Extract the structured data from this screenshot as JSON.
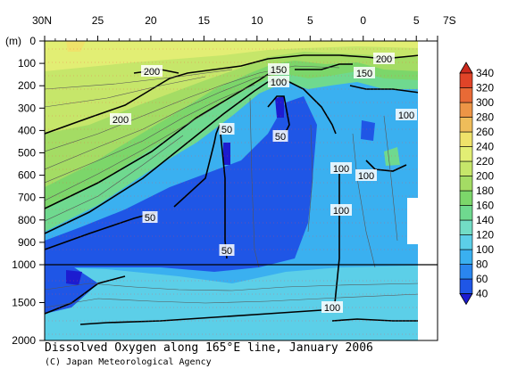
{
  "chart_data": {
    "type": "contour",
    "title": "Dissolved Oxygen along 165°E line, January 2006",
    "credit": "(C) Japan Meteorological Agency",
    "x_ticks": [
      "30N",
      "25",
      "20",
      "15",
      "10",
      "5",
      "0",
      "5",
      "7S"
    ],
    "x_values": [
      30,
      25,
      20,
      15,
      10,
      5,
      0,
      -5,
      -7
    ],
    "ylabel": "(m)",
    "y_ticks_upper": [
      "0",
      "100",
      "200",
      "300",
      "400",
      "500",
      "600",
      "700",
      "800",
      "900",
      "1000"
    ],
    "y_ticks_lower": [
      "1500",
      "2000"
    ],
    "colorbar": {
      "levels": [
        "40",
        "60",
        "80",
        "100",
        "120",
        "140",
        "160",
        "180",
        "200",
        "220",
        "240",
        "260",
        "280",
        "300",
        "320",
        "340"
      ],
      "colors": [
        "#1c1cd0",
        "#1f56e6",
        "#2a86ee",
        "#3ab0f0",
        "#5ccfe8",
        "#72ddc6",
        "#6fd98f",
        "#7cd66a",
        "#a4dc64",
        "#c6e66a",
        "#e2ee74",
        "#efe26a",
        "#efbd5a",
        "#ed9546",
        "#e86a36",
        "#e04428",
        "#cc2a1e"
      ]
    },
    "contour_labels": [
      "200",
      "200",
      "200",
      "150",
      "100",
      "150",
      "100",
      "50",
      "50",
      "100",
      "50",
      "50",
      "100",
      "100",
      "100"
    ]
  }
}
